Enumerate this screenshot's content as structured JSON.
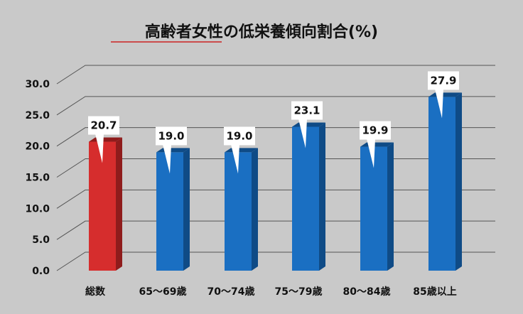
{
  "chart_data": {
    "type": "bar",
    "title": "高齢者女性の低栄養傾向割合(%)",
    "categories": [
      "総数",
      "65～69歳",
      "70～74歳",
      "75～79歳",
      "80～84歳",
      "85歳以上"
    ],
    "values": [
      20.7,
      19.0,
      19.0,
      23.1,
      19.9,
      27.9
    ],
    "value_labels": [
      "20.7",
      "19.0",
      "19.0",
      "23.1",
      "19.9",
      "27.9"
    ],
    "yticks": [
      "0.0",
      "5.0",
      "10.0",
      "15.0",
      "20.0",
      "25.0",
      "30.0"
    ],
    "ylim": [
      0,
      35
    ],
    "grid": true,
    "legend": "none",
    "xlabel": "",
    "ylabel": ""
  },
  "colors": {
    "background": "#c9c9c9",
    "gridline": "#555555",
    "highlight_bar": "#d62d2d",
    "highlight_bar_dark": "#8f1c1c",
    "bar": "#1a6fc2",
    "bar_dark": "#0f4b86",
    "title_underline": "#cc2222"
  }
}
